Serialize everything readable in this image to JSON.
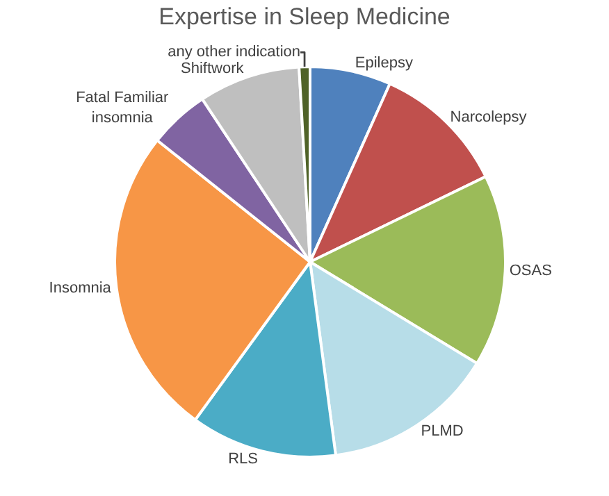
{
  "chart_data": {
    "type": "pie",
    "title": "Expertise in Sleep Medicine",
    "categories": [
      "Epilepsy",
      "Narcolepsy",
      "OSAS",
      "PLMD",
      "RLS",
      "Insomnia",
      "Fatal Familiar\ninsomnia",
      "Shiftwork",
      "any other indication"
    ],
    "values": [
      6.7,
      11.1,
      15.9,
      14.2,
      12.1,
      25.7,
      5.0,
      8.4,
      0.9
    ],
    "colors": [
      "#4f81bd",
      "#c0504d",
      "#9bbb59",
      "#b7dde8",
      "#4bacc6",
      "#f79646",
      "#8064a2",
      "#bfbfbf",
      "#4f6228"
    ],
    "legend": false
  }
}
